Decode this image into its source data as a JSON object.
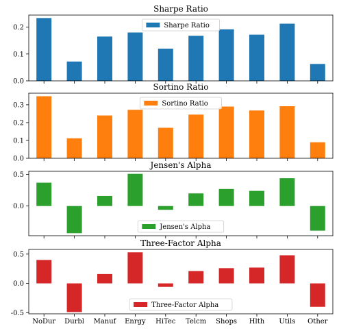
{
  "chart_data": [
    {
      "type": "bar",
      "title": "Sharpe Ratio",
      "color": "#1f77b4",
      "legend": {
        "label": "Sharpe Ratio",
        "placement": "upper center"
      },
      "categories": [
        "NoDur",
        "Durbl",
        "Manuf",
        "Enrgy",
        "HiTec",
        "Telcm",
        "Shops",
        "Hlth",
        "Utils",
        "Other"
      ],
      "values": [
        0.234,
        0.072,
        0.165,
        0.18,
        0.12,
        0.168,
        0.192,
        0.172,
        0.213,
        0.063
      ],
      "ylim": [
        0,
        0.245
      ],
      "yticks": [
        0.0,
        0.1,
        0.2
      ],
      "ytick_labels": [
        "0.0",
        "0.1",
        "0.2"
      ],
      "show_xtick_labels": false
    },
    {
      "type": "bar",
      "title": "Sortino Ratio",
      "color": "#ff7f0e",
      "legend": {
        "label": "Sortino Ratio",
        "placement": "upper center"
      },
      "categories": [
        "NoDur",
        "Durbl",
        "Manuf",
        "Enrgy",
        "HiTec",
        "Telcm",
        "Shops",
        "Hlth",
        "Utils",
        "Other"
      ],
      "values": [
        0.348,
        0.112,
        0.24,
        0.272,
        0.171,
        0.245,
        0.29,
        0.268,
        0.292,
        0.09
      ],
      "ylim": [
        0,
        0.365
      ],
      "yticks": [
        0.0,
        0.1,
        0.2,
        0.3
      ],
      "ytick_labels": [
        "0.0",
        "0.1",
        "0.2",
        "0.3"
      ],
      "show_xtick_labels": false
    },
    {
      "type": "bar",
      "title": "Jensen's Alpha",
      "color": "#2ca02c",
      "legend": {
        "label": "Jensen's Alpha",
        "placement": "lower center"
      },
      "categories": [
        "NoDur",
        "Durbl",
        "Manuf",
        "Enrgy",
        "HiTec",
        "Telcm",
        "Shops",
        "Hlth",
        "Utils",
        "Other"
      ],
      "values": [
        0.37,
        -0.43,
        0.16,
        0.51,
        -0.06,
        0.2,
        0.27,
        0.24,
        0.44,
        -0.39
      ],
      "ylim": [
        -0.47,
        0.55
      ],
      "yticks": [
        0.0,
        0.5
      ],
      "ytick_labels": [
        "0.0",
        "0.5"
      ],
      "show_xtick_labels": false
    },
    {
      "type": "bar",
      "title": "Three-Factor Alpha",
      "color": "#d62728",
      "legend": {
        "label": "Three-Factor Alpha",
        "placement": "lower center"
      },
      "categories": [
        "NoDur",
        "Durbl",
        "Manuf",
        "Enrgy",
        "HiTec",
        "Telcm",
        "Shops",
        "Hlth",
        "Utils",
        "Other"
      ],
      "values": [
        0.4,
        -0.49,
        0.16,
        0.53,
        -0.06,
        0.21,
        0.26,
        0.27,
        0.48,
        -0.4
      ],
      "ylim": [
        -0.52,
        0.58
      ],
      "yticks": [
        -0.5,
        0.0,
        0.5
      ],
      "ytick_labels": [
        "-0.5",
        "0.0",
        "0.5"
      ],
      "show_xtick_labels": true
    }
  ]
}
